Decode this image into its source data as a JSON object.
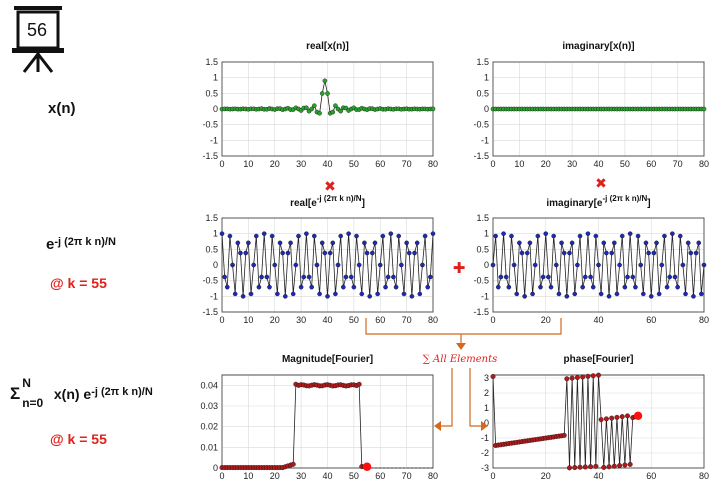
{
  "slide_number": "56",
  "left_labels": {
    "xn": "x(n)",
    "exp_base": "e",
    "exp_power": "-j (2π k n)/N",
    "k_value": "@ k = 55",
    "sum_symbol": "Σ",
    "sum_upper": "N",
    "sum_lower": "n=0",
    "sum_term": "x(n) e",
    "sum_power": "-j (2π k n)/N",
    "k_value2": "@ k = 55"
  },
  "operators": {
    "multiply": "✖",
    "plus": "✚",
    "sum_text": "∑ All Elements"
  },
  "colors": {
    "signal_green": "#2ca02c",
    "basis_blue": "#1f2ab4",
    "fourier_red": "#b01a1a",
    "highlight_red": "#ff1010",
    "arrow_orange": "#d2691e",
    "operator_red": "#e0201b"
  },
  "chart_data": [
    {
      "id": "real_x",
      "type": "line",
      "title": "real[x(n)]",
      "xlim": [
        0,
        80
      ],
      "ylim": [
        -1.5,
        1.5
      ],
      "xticks": [
        0,
        10,
        20,
        30,
        40,
        50,
        60,
        70,
        80
      ],
      "yticks": [
        -1.5,
        -1,
        -0.5,
        0,
        0.5,
        1,
        1.5
      ],
      "grid": true,
      "series_color": "green",
      "signal": "sinc",
      "n_range": [
        0,
        80
      ],
      "center": 39
    },
    {
      "id": "imag_x",
      "type": "line",
      "title": "imaginary[x(n)]",
      "xlim": [
        0,
        80
      ],
      "ylim": [
        -1.5,
        1.5
      ],
      "xticks": [
        0,
        10,
        20,
        30,
        40,
        50,
        60,
        70,
        80
      ],
      "yticks": [
        -1.5,
        -1,
        -0.5,
        0,
        0.5,
        1,
        1.5
      ],
      "grid": true,
      "series_color": "green",
      "signal": "zero",
      "n_range": [
        0,
        80
      ]
    },
    {
      "id": "real_exp",
      "type": "line",
      "title": "real[e-j (2π k n)/N]",
      "title_base": "real[e",
      "title_power": "-j (2π k n)/N",
      "title_close": "]",
      "xlim": [
        0,
        80
      ],
      "ylim": [
        -1.5,
        1.5
      ],
      "xticks": [
        0,
        10,
        20,
        30,
        40,
        50,
        60,
        70,
        80
      ],
      "yticks": [
        -1.5,
        -1,
        -0.5,
        0,
        0.5,
        1,
        1.5
      ],
      "grid": true,
      "series_color": "blue",
      "signal": "cos",
      "k": 55,
      "N": 80,
      "n_range": [
        0,
        80
      ]
    },
    {
      "id": "imag_exp",
      "type": "line",
      "title": "imaginary[e-j (2π k n)/N]",
      "title_base": "imaginary[e",
      "title_power": "-j (2π k n)/N",
      "title_close": "]",
      "xlim": [
        0,
        80
      ],
      "ylim": [
        -1.5,
        1.5
      ],
      "xticks": [
        0,
        20,
        40,
        60,
        80
      ],
      "yticks": [
        -1.5,
        -1,
        -0.5,
        0,
        0.5,
        1,
        1.5
      ],
      "grid": true,
      "series_color": "blue",
      "signal": "negsin",
      "k": 55,
      "N": 80,
      "n_range": [
        0,
        80
      ]
    },
    {
      "id": "mag",
      "type": "line",
      "title": "Magnitude[Fourier]",
      "xlim": [
        0,
        80
      ],
      "ylim": [
        0,
        0.045
      ],
      "xticks": [
        0,
        10,
        20,
        30,
        40,
        50,
        60,
        70,
        80
      ],
      "yticks": [
        0,
        0.01,
        0.02,
        0.03,
        0.04
      ],
      "grid": true,
      "series_color": "red",
      "passband": [
        28,
        52
      ],
      "pass_value": 0.04,
      "k_shown": [
        0,
        55
      ],
      "highlight_k": 55
    },
    {
      "id": "phase",
      "type": "line",
      "title": "phase[Fourier]",
      "xlim": [
        0,
        80
      ],
      "ylim": [
        -3,
        3.2
      ],
      "xticks": [
        0,
        20,
        40,
        60,
        80
      ],
      "yticks": [
        -3,
        -2,
        -1,
        0,
        1,
        2,
        3
      ],
      "grid": true,
      "series_color": "red",
      "k_shown": [
        0,
        55
      ],
      "highlight_k": 55,
      "center": 39
    }
  ]
}
